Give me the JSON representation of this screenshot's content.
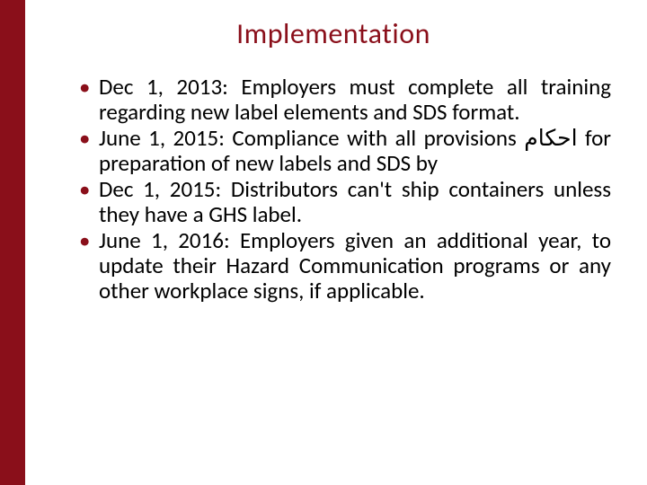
{
  "sidebar": {
    "color": "#8a0f1a"
  },
  "title": {
    "text": "Implementation",
    "color": "#8a0f1a",
    "fontsize": 32
  },
  "bullet": {
    "marker_color": "#8a0f1a",
    "text_color": "#000000",
    "fontsize": 25
  },
  "items": [
    {
      "text": "Dec 1, 2013: Employers must complete all training regarding new label elements and SDS format."
    },
    {
      "text": "June 1, 2015: Compliance with all provisions ﺍﺣﻜﺎﻡ for preparation of new labels and SDS by"
    },
    {
      "text": "Dec 1, 2015: Distributors can't ship containers unless they have a GHS label."
    },
    {
      "text": "June 1, 2016: Employers given an additional year, to update their Hazard Communication programs or any other workplace signs, if applicable."
    }
  ]
}
